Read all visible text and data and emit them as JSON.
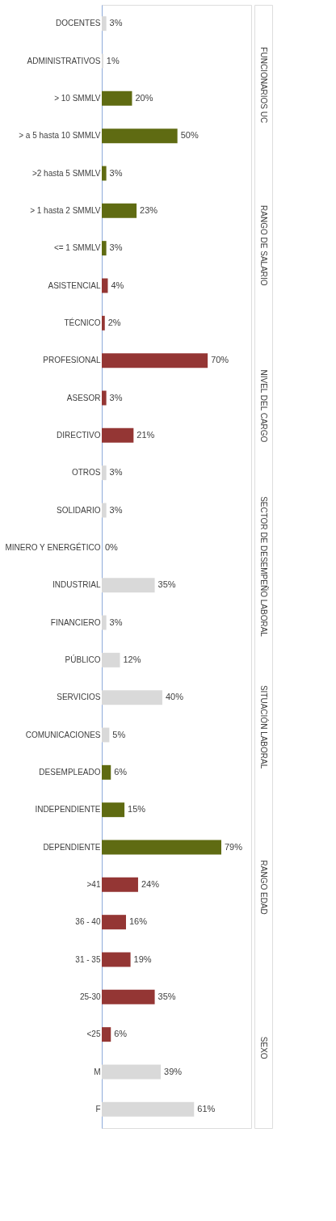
{
  "chart_data": {
    "type": "bar",
    "orientation": "horizontal",
    "data_labels": true,
    "grid": false,
    "legend": false,
    "categories": [
      "DOCENTES",
      "ADMINISTRATIVOS",
      "> 10 SMMLV",
      "> a 5 hasta 10 SMMLV",
      ">2 hasta 5 SMMLV",
      "> 1 hasta 2 SMMLV",
      "<= 1 SMMLV",
      "ASISTENCIAL",
      "TÉCNICO",
      "PROFESIONAL",
      "ASESOR",
      "DIRECTIVO",
      "OTROS",
      "SOLIDARIO",
      "MINERO Y ENERGÉTICO",
      "INDUSTRIAL",
      "FINANCIERO",
      "PÚBLICO",
      "SERVICIOS",
      "COMUNICACIONES",
      "DESEMPLEADO",
      "INDEPENDIENTE",
      "DEPENDIENTE",
      ">41",
      "36 - 40",
      "31 - 35",
      "25-30",
      "<25",
      "M",
      "F"
    ],
    "values": [
      3,
      1,
      20,
      50,
      3,
      23,
      3,
      4,
      2,
      70,
      3,
      21,
      3,
      3,
      0,
      35,
      3,
      12,
      40,
      5,
      6,
      15,
      79,
      24,
      16,
      19,
      35,
      6,
      39,
      61
    ],
    "value_labels": [
      "3%",
      "1%",
      "20%",
      "50%",
      "3%",
      "23%",
      "3%",
      "4%",
      "2%",
      "70%",
      "3%",
      "21%",
      "3%",
      "3%",
      "0%",
      "35%",
      "3%",
      "12%",
      "40%",
      "5%",
      "6%",
      "15%",
      "79%",
      "24%",
      "16%",
      "19%",
      "35%",
      "6%",
      "39%",
      "61%"
    ],
    "colors": [
      "#d9d9d9",
      "#d9d9d9",
      "#5f6b12",
      "#5f6b12",
      "#5f6b12",
      "#5f6b12",
      "#5f6b12",
      "#943634",
      "#943634",
      "#943634",
      "#943634",
      "#943634",
      "#d9d9d9",
      "#d9d9d9",
      "#d9d9d9",
      "#d9d9d9",
      "#d9d9d9",
      "#d9d9d9",
      "#d9d9d9",
      "#d9d9d9",
      "#5f6b12",
      "#5f6b12",
      "#5f6b12",
      "#943634",
      "#943634",
      "#943634",
      "#943634",
      "#943634",
      "#d9d9d9",
      "#d9d9d9"
    ],
    "annotations": [
      "FUNCIONARIOS UC",
      "RANGO DE SALARIO",
      "NIVEL DEL CARGO",
      "SECTOR  DE DESEMPEÑO LABORAL",
      "SITUACIÓN  LABORAL",
      "RANGO EDAD",
      "SEXO"
    ]
  }
}
